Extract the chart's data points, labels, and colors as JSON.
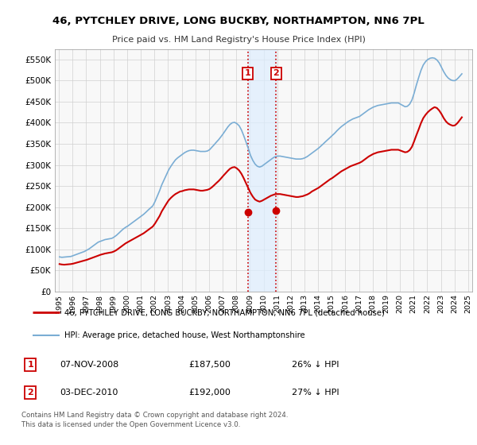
{
  "title": "46, PYTCHLEY DRIVE, LONG BUCKBY, NORTHAMPTON, NN6 7PL",
  "subtitle": "Price paid vs. HM Land Registry's House Price Index (HPI)",
  "legend_line1": "46, PYTCHLEY DRIVE, LONG BUCKBY, NORTHAMPTON, NN6 7PL (detached house)",
  "legend_line2": "HPI: Average price, detached house, West Northamptonshire",
  "footer": "Contains HM Land Registry data © Crown copyright and database right 2024.\nThis data is licensed under the Open Government Licence v3.0.",
  "annotation1_date": "07-NOV-2008",
  "annotation1_price": "£187,500",
  "annotation1_hpi": "26% ↓ HPI",
  "annotation2_date": "03-DEC-2010",
  "annotation2_price": "£192,000",
  "annotation2_hpi": "27% ↓ HPI",
  "sale1_x": 2008.85,
  "sale1_y": 187500,
  "sale2_x": 2010.92,
  "sale2_y": 192000,
  "sale_color": "#cc0000",
  "hpi_color": "#7aadd4",
  "vline_color": "#cc0000",
  "vshade_color": "#ddeeff",
  "bg_color": "#f8f8f8",
  "ylim": [
    0,
    575000
  ],
  "xlim": [
    1994.7,
    2025.3
  ],
  "yticks": [
    0,
    50000,
    100000,
    150000,
    200000,
    250000,
    300000,
    350000,
    400000,
    450000,
    500000,
    550000
  ],
  "ytick_labels": [
    "£0",
    "£50K",
    "£100K",
    "£150K",
    "£200K",
    "£250K",
    "£300K",
    "£350K",
    "£400K",
    "£450K",
    "£500K",
    "£550K"
  ],
  "hpi_data_x": [
    1995.04,
    1995.21,
    1995.38,
    1995.54,
    1995.71,
    1995.88,
    1996.04,
    1996.21,
    1996.38,
    1996.54,
    1996.71,
    1996.88,
    1997.04,
    1997.21,
    1997.38,
    1997.54,
    1997.71,
    1997.88,
    1998.04,
    1998.21,
    1998.38,
    1998.54,
    1998.71,
    1998.88,
    1999.04,
    1999.21,
    1999.38,
    1999.54,
    1999.71,
    1999.88,
    2000.04,
    2000.21,
    2000.38,
    2000.54,
    2000.71,
    2000.88,
    2001.04,
    2001.21,
    2001.38,
    2001.54,
    2001.71,
    2001.88,
    2002.04,
    2002.21,
    2002.38,
    2002.54,
    2002.71,
    2002.88,
    2003.04,
    2003.21,
    2003.38,
    2003.54,
    2003.71,
    2003.88,
    2004.04,
    2004.21,
    2004.38,
    2004.54,
    2004.71,
    2004.88,
    2005.04,
    2005.21,
    2005.38,
    2005.54,
    2005.71,
    2005.88,
    2006.04,
    2006.21,
    2006.38,
    2006.54,
    2006.71,
    2006.88,
    2007.04,
    2007.21,
    2007.38,
    2007.54,
    2007.71,
    2007.88,
    2008.04,
    2008.21,
    2008.38,
    2008.54,
    2008.71,
    2008.88,
    2009.04,
    2009.21,
    2009.38,
    2009.54,
    2009.71,
    2009.88,
    2010.04,
    2010.21,
    2010.38,
    2010.54,
    2010.71,
    2010.88,
    2011.04,
    2011.21,
    2011.38,
    2011.54,
    2011.71,
    2011.88,
    2012.04,
    2012.21,
    2012.38,
    2012.54,
    2012.71,
    2012.88,
    2013.04,
    2013.21,
    2013.38,
    2013.54,
    2013.71,
    2013.88,
    2014.04,
    2014.21,
    2014.38,
    2014.54,
    2014.71,
    2014.88,
    2015.04,
    2015.21,
    2015.38,
    2015.54,
    2015.71,
    2015.88,
    2016.04,
    2016.21,
    2016.38,
    2016.54,
    2016.71,
    2016.88,
    2017.04,
    2017.21,
    2017.38,
    2017.54,
    2017.71,
    2017.88,
    2018.04,
    2018.21,
    2018.38,
    2018.54,
    2018.71,
    2018.88,
    2019.04,
    2019.21,
    2019.38,
    2019.54,
    2019.71,
    2019.88,
    2020.04,
    2020.21,
    2020.38,
    2020.54,
    2020.71,
    2020.88,
    2021.04,
    2021.21,
    2021.38,
    2021.54,
    2021.71,
    2021.88,
    2022.04,
    2022.21,
    2022.38,
    2022.54,
    2022.71,
    2022.88,
    2023.04,
    2023.21,
    2023.38,
    2023.54,
    2023.71,
    2023.88,
    2024.04,
    2024.21,
    2024.38,
    2024.54
  ],
  "hpi_data_y": [
    82000,
    81000,
    81500,
    82000,
    82500,
    83000,
    85000,
    87000,
    89000,
    91000,
    93000,
    95000,
    98000,
    101000,
    105000,
    109000,
    113000,
    117000,
    119000,
    121000,
    123000,
    124000,
    125000,
    126000,
    129000,
    133000,
    138000,
    143000,
    148000,
    152000,
    155000,
    159000,
    163000,
    167000,
    171000,
    175000,
    179000,
    183000,
    188000,
    193000,
    198000,
    203000,
    213000,
    226000,
    239000,
    253000,
    265000,
    277000,
    288000,
    297000,
    305000,
    312000,
    317000,
    321000,
    325000,
    329000,
    332000,
    334000,
    335000,
    335000,
    334000,
    333000,
    332000,
    332000,
    332000,
    333000,
    336000,
    342000,
    348000,
    354000,
    360000,
    367000,
    374000,
    382000,
    390000,
    396000,
    400000,
    401000,
    398000,
    393000,
    383000,
    370000,
    355000,
    339000,
    323000,
    311000,
    302000,
    297000,
    295000,
    297000,
    301000,
    305000,
    309000,
    313000,
    317000,
    320000,
    321000,
    321000,
    320000,
    319000,
    318000,
    317000,
    316000,
    315000,
    314000,
    314000,
    314000,
    315000,
    317000,
    320000,
    324000,
    328000,
    332000,
    336000,
    340000,
    345000,
    350000,
    355000,
    360000,
    365000,
    370000,
    375000,
    381000,
    386000,
    391000,
    395000,
    399000,
    403000,
    406000,
    409000,
    411000,
    413000,
    415000,
    419000,
    423000,
    427000,
    431000,
    434000,
    437000,
    439000,
    441000,
    442000,
    443000,
    444000,
    445000,
    446000,
    447000,
    447000,
    447000,
    447000,
    444000,
    441000,
    438000,
    439000,
    444000,
    454000,
    470000,
    490000,
    508000,
    524000,
    537000,
    545000,
    550000,
    553000,
    554000,
    553000,
    549000,
    542000,
    532000,
    521000,
    512000,
    506000,
    502000,
    500000,
    500000,
    504000,
    510000,
    516000
  ],
  "price_data_x": [
    1995.04,
    1995.21,
    1995.38,
    1995.54,
    1995.71,
    1995.88,
    1996.04,
    1996.21,
    1996.38,
    1996.54,
    1996.71,
    1996.88,
    1997.04,
    1997.21,
    1997.38,
    1997.54,
    1997.71,
    1997.88,
    1998.04,
    1998.21,
    1998.38,
    1998.54,
    1998.71,
    1998.88,
    1999.04,
    1999.21,
    1999.38,
    1999.54,
    1999.71,
    1999.88,
    2000.04,
    2000.21,
    2000.38,
    2000.54,
    2000.71,
    2000.88,
    2001.04,
    2001.21,
    2001.38,
    2001.54,
    2001.71,
    2001.88,
    2002.04,
    2002.21,
    2002.38,
    2002.54,
    2002.71,
    2002.88,
    2003.04,
    2003.21,
    2003.38,
    2003.54,
    2003.71,
    2003.88,
    2004.04,
    2004.21,
    2004.38,
    2004.54,
    2004.71,
    2004.88,
    2005.04,
    2005.21,
    2005.38,
    2005.54,
    2005.71,
    2005.88,
    2006.04,
    2006.21,
    2006.38,
    2006.54,
    2006.71,
    2006.88,
    2007.04,
    2007.21,
    2007.38,
    2007.54,
    2007.71,
    2007.88,
    2008.04,
    2008.21,
    2008.38,
    2008.54,
    2008.71,
    2008.88,
    2009.04,
    2009.21,
    2009.38,
    2009.54,
    2009.71,
    2009.88,
    2010.04,
    2010.21,
    2010.38,
    2010.54,
    2010.71,
    2010.88,
    2011.04,
    2011.21,
    2011.38,
    2011.54,
    2011.71,
    2011.88,
    2012.04,
    2012.21,
    2012.38,
    2012.54,
    2012.71,
    2012.88,
    2013.04,
    2013.21,
    2013.38,
    2013.54,
    2013.71,
    2013.88,
    2014.04,
    2014.21,
    2014.38,
    2014.54,
    2014.71,
    2014.88,
    2015.04,
    2015.21,
    2015.38,
    2015.54,
    2015.71,
    2015.88,
    2016.04,
    2016.21,
    2016.38,
    2016.54,
    2016.71,
    2016.88,
    2017.04,
    2017.21,
    2017.38,
    2017.54,
    2017.71,
    2017.88,
    2018.04,
    2018.21,
    2018.38,
    2018.54,
    2018.71,
    2018.88,
    2019.04,
    2019.21,
    2019.38,
    2019.54,
    2019.71,
    2019.88,
    2020.04,
    2020.21,
    2020.38,
    2020.54,
    2020.71,
    2020.88,
    2021.04,
    2021.21,
    2021.38,
    2021.54,
    2021.71,
    2021.88,
    2022.04,
    2022.21,
    2022.38,
    2022.54,
    2022.71,
    2022.88,
    2023.04,
    2023.21,
    2023.38,
    2023.54,
    2023.71,
    2023.88,
    2024.04,
    2024.21,
    2024.38,
    2024.54
  ],
  "price_data_y": [
    65000,
    64000,
    63500,
    64000,
    64500,
    65000,
    66000,
    67500,
    69000,
    70500,
    72000,
    73500,
    75000,
    77000,
    79000,
    81000,
    83000,
    85000,
    87000,
    88500,
    90000,
    91000,
    92000,
    93000,
    95000,
    98000,
    102000,
    106000,
    110000,
    114000,
    117000,
    120000,
    123000,
    126000,
    129000,
    132000,
    135000,
    138000,
    142000,
    146000,
    150000,
    154000,
    161000,
    170000,
    179000,
    190000,
    199000,
    208000,
    216000,
    222000,
    227000,
    231000,
    234000,
    237000,
    238000,
    240000,
    241000,
    242000,
    242000,
    242000,
    241000,
    240000,
    239000,
    239000,
    240000,
    241000,
    243000,
    247000,
    252000,
    257000,
    262000,
    268000,
    274000,
    280000,
    286000,
    291000,
    294000,
    295000,
    292000,
    287000,
    279000,
    269000,
    257000,
    245000,
    234000,
    225000,
    218000,
    215000,
    213000,
    215000,
    218000,
    221000,
    224000,
    227000,
    229000,
    231000,
    231000,
    231000,
    230000,
    229000,
    228000,
    227000,
    226000,
    225000,
    224000,
    224000,
    225000,
    226000,
    228000,
    230000,
    233000,
    237000,
    240000,
    243000,
    246000,
    250000,
    254000,
    258000,
    262000,
    266000,
    269000,
    273000,
    277000,
    281000,
    285000,
    288000,
    291000,
    294000,
    297000,
    299000,
    301000,
    303000,
    305000,
    308000,
    312000,
    316000,
    320000,
    323000,
    326000,
    328000,
    330000,
    331000,
    332000,
    333000,
    334000,
    335000,
    336000,
    336000,
    336000,
    336000,
    334000,
    332000,
    330000,
    331000,
    335000,
    343000,
    356000,
    371000,
    385000,
    399000,
    411000,
    419000,
    425000,
    430000,
    434000,
    437000,
    435000,
    429000,
    421000,
    411000,
    403000,
    398000,
    395000,
    393000,
    394000,
    399000,
    406000,
    413000
  ]
}
